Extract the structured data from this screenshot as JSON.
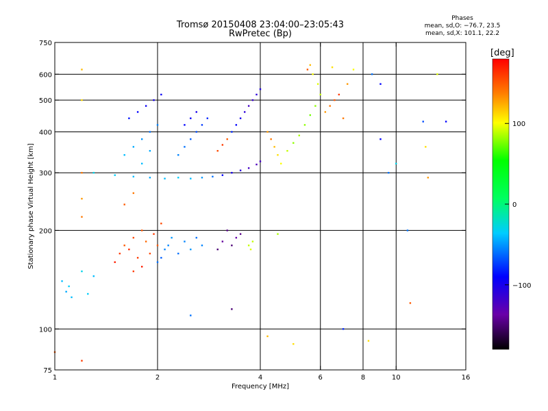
{
  "header": {
    "title_line1": "Tromsø 20150408 23:04:00–23:05:43",
    "title_line2": "RwPretec (Bp)"
  },
  "stats": {
    "heading": "Phases",
    "line_o": "mean, sd,O: −76.7, 23.5",
    "line_x": "mean, sd,X: 101.1, 22.2"
  },
  "colorbar": {
    "unit": "[deg]",
    "ticks": [
      {
        "label": "100",
        "value": 100
      },
      {
        "label": "0",
        "value": 0
      },
      {
        "label": "−100",
        "value": -100
      }
    ],
    "range": [
      -180,
      180
    ]
  },
  "chart_data": {
    "type": "scatter",
    "xlabel": "Frequency [MHz]",
    "ylabel": "Stationary phase Virtual Height [km]",
    "x_scale": "log",
    "y_scale": "log",
    "xlim": [
      1,
      16
    ],
    "ylim": [
      75,
      750
    ],
    "x_ticks": [
      {
        "value": 1,
        "label": "1"
      },
      {
        "value": 2,
        "label": "2"
      },
      {
        "value": 4,
        "label": "4"
      },
      {
        "value": 6,
        "label": "6"
      },
      {
        "value": 8,
        "label": "8"
      },
      {
        "value": 10,
        "label": "10"
      },
      {
        "value": 16,
        "label": "16"
      }
    ],
    "y_ticks": [
      {
        "value": 75,
        "label": "75"
      },
      {
        "value": 100,
        "label": "100"
      },
      {
        "value": 200,
        "label": "200"
      },
      {
        "value": 300,
        "label": "300"
      },
      {
        "value": 400,
        "label": "400"
      },
      {
        "value": 500,
        "label": "500"
      },
      {
        "value": 600,
        "label": "600"
      },
      {
        "value": 750,
        "label": "750"
      }
    ],
    "x_grid": [
      2,
      4,
      6,
      8,
      10
    ],
    "y_grid": [
      100,
      200,
      300,
      400,
      500,
      600
    ],
    "grid": true,
    "points": [
      [
        1.05,
        140,
        -40
      ],
      [
        1.08,
        130,
        -45
      ],
      [
        1.1,
        135,
        -35
      ],
      [
        1.12,
        125,
        -40
      ],
      [
        1.2,
        150,
        -30
      ],
      [
        1.25,
        128,
        -35
      ],
      [
        1.3,
        145,
        -40
      ],
      [
        1.5,
        160,
        170
      ],
      [
        1.55,
        170,
        160
      ],
      [
        1.6,
        180,
        150
      ],
      [
        1.65,
        175,
        165
      ],
      [
        1.7,
        190,
        155
      ],
      [
        1.75,
        165,
        160
      ],
      [
        1.8,
        200,
        150
      ],
      [
        1.85,
        185,
        145
      ],
      [
        1.9,
        170,
        155
      ],
      [
        1.95,
        195,
        160
      ],
      [
        2.0,
        180,
        150
      ],
      [
        2.05,
        210,
        155
      ],
      [
        1.7,
        150,
        160
      ],
      [
        1.8,
        155,
        170
      ],
      [
        2.0,
        160,
        -60
      ],
      [
        2.1,
        175,
        -55
      ],
      [
        2.2,
        190,
        -50
      ],
      [
        2.05,
        165,
        -65
      ],
      [
        2.15,
        180,
        -55
      ],
      [
        2.3,
        170,
        -60
      ],
      [
        2.4,
        185,
        -55
      ],
      [
        2.5,
        175,
        -50
      ],
      [
        2.6,
        190,
        -60
      ],
      [
        2.7,
        180,
        -55
      ],
      [
        3.0,
        175,
        -150
      ],
      [
        3.1,
        185,
        -140
      ],
      [
        3.2,
        200,
        -145
      ],
      [
        3.3,
        180,
        -150
      ],
      [
        3.4,
        190,
        -135
      ],
      [
        3.5,
        195,
        -145
      ],
      [
        3.7,
        180,
        90
      ],
      [
        3.75,
        175,
        95
      ],
      [
        3.8,
        185,
        90
      ],
      [
        4.5,
        195,
        85
      ],
      [
        1.3,
        300,
        -30
      ],
      [
        1.5,
        295,
        -35
      ],
      [
        1.7,
        292,
        -40
      ],
      [
        1.9,
        290,
        -45
      ],
      [
        2.1,
        288,
        -40
      ],
      [
        2.3,
        290,
        -35
      ],
      [
        2.5,
        288,
        -40
      ],
      [
        2.7,
        290,
        -50
      ],
      [
        2.9,
        292,
        -60
      ],
      [
        3.1,
        295,
        -90
      ],
      [
        3.3,
        300,
        -100
      ],
      [
        3.5,
        305,
        -110
      ],
      [
        3.7,
        310,
        -120
      ],
      [
        3.9,
        318,
        -125
      ],
      [
        4.0,
        325,
        -120
      ],
      [
        1.6,
        340,
        -40
      ],
      [
        1.7,
        360,
        -45
      ],
      [
        1.8,
        380,
        -50
      ],
      [
        1.9,
        400,
        -60
      ],
      [
        2.0,
        420,
        -55
      ],
      [
        1.65,
        440,
        -85
      ],
      [
        1.75,
        460,
        -90
      ],
      [
        1.85,
        480,
        -95
      ],
      [
        1.95,
        500,
        -100
      ],
      [
        2.05,
        520,
        -95
      ],
      [
        1.9,
        350,
        -45
      ],
      [
        1.8,
        320,
        -40
      ],
      [
        2.3,
        340,
        -55
      ],
      [
        2.4,
        360,
        -60
      ],
      [
        2.5,
        380,
        -65
      ],
      [
        2.6,
        400,
        -70
      ],
      [
        2.7,
        420,
        -75
      ],
      [
        2.8,
        440,
        -80
      ],
      [
        2.4,
        420,
        -90
      ],
      [
        2.5,
        440,
        -95
      ],
      [
        2.6,
        460,
        -100
      ],
      [
        3.0,
        350,
        155
      ],
      [
        3.1,
        365,
        160
      ],
      [
        3.2,
        380,
        150
      ],
      [
        3.3,
        400,
        -80
      ],
      [
        3.4,
        420,
        -90
      ],
      [
        3.5,
        440,
        -100
      ],
      [
        3.6,
        460,
        -110
      ],
      [
        3.7,
        480,
        -120
      ],
      [
        3.8,
        500,
        -115
      ],
      [
        3.9,
        520,
        -110
      ],
      [
        4.0,
        540,
        -105
      ],
      [
        4.2,
        400,
        130
      ],
      [
        4.3,
        380,
        140
      ],
      [
        4.4,
        360,
        120
      ],
      [
        4.5,
        340,
        110
      ],
      [
        4.6,
        320,
        100
      ],
      [
        4.8,
        350,
        90
      ],
      [
        5.0,
        370,
        80
      ],
      [
        5.2,
        390,
        85
      ],
      [
        5.4,
        420,
        80
      ],
      [
        5.6,
        450,
        75
      ],
      [
        5.8,
        480,
        80
      ],
      [
        6.0,
        520,
        90
      ],
      [
        5.9,
        560,
        95
      ],
      [
        5.7,
        600,
        100
      ],
      [
        6.2,
        460,
        130
      ],
      [
        6.4,
        480,
        140
      ],
      [
        6.6,
        500,
        150
      ],
      [
        6.8,
        520,
        160
      ],
      [
        7.0,
        440,
        140
      ],
      [
        7.2,
        560,
        130
      ],
      [
        5.5,
        620,
        150
      ],
      [
        5.6,
        640,
        120
      ],
      [
        6.5,
        630,
        110
      ],
      [
        7.5,
        620,
        100
      ],
      [
        8.5,
        600,
        -60
      ],
      [
        9.0,
        560,
        -90
      ],
      [
        1.2,
        620,
        120
      ],
      [
        1.2,
        500,
        110
      ],
      [
        1.2,
        300,
        140
      ],
      [
        1.2,
        250,
        130
      ],
      [
        1.2,
        220,
        140
      ],
      [
        1.6,
        240,
        150
      ],
      [
        1.7,
        260,
        140
      ],
      [
        2.5,
        110,
        -60
      ],
      [
        3.3,
        115,
        -150
      ],
      [
        4.2,
        95,
        120
      ],
      [
        5.0,
        90,
        110
      ],
      [
        7.0,
        100,
        -80
      ],
      [
        8.3,
        92,
        110
      ],
      [
        9.0,
        380,
        -90
      ],
      [
        9.5,
        300,
        -60
      ],
      [
        10.0,
        320,
        -30
      ],
      [
        12.0,
        430,
        -70
      ],
      [
        12.2,
        360,
        110
      ],
      [
        12.4,
        290,
        130
      ],
      [
        13.2,
        600,
        95
      ],
      [
        14.0,
        430,
        -90
      ],
      [
        10.8,
        200,
        -60
      ],
      [
        11.0,
        120,
        150
      ],
      [
        1.0,
        85,
        150
      ],
      [
        1.2,
        80,
        160
      ]
    ]
  }
}
